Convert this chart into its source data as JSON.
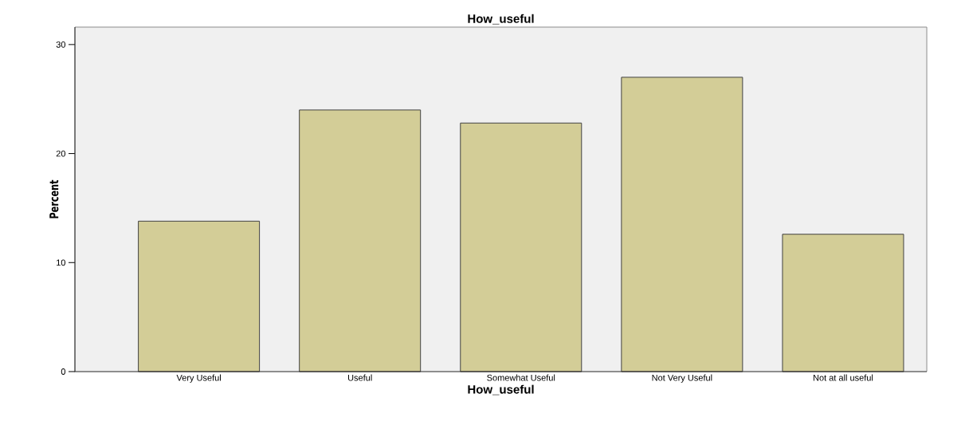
{
  "chart_data": {
    "type": "bar",
    "title": "How_useful",
    "xlabel": "How_useful",
    "ylabel": "Percent",
    "categories": [
      "Very Useful",
      "Useful",
      "Somewhat Useful",
      "Not Very Useful",
      "Not at all useful"
    ],
    "values": [
      13.8,
      24.0,
      22.8,
      27.0,
      12.6
    ],
    "color": "#d3cd97",
    "ylim": [
      0,
      31.6
    ],
    "yticks": [
      0,
      10,
      20,
      30
    ],
    "grid": false
  }
}
